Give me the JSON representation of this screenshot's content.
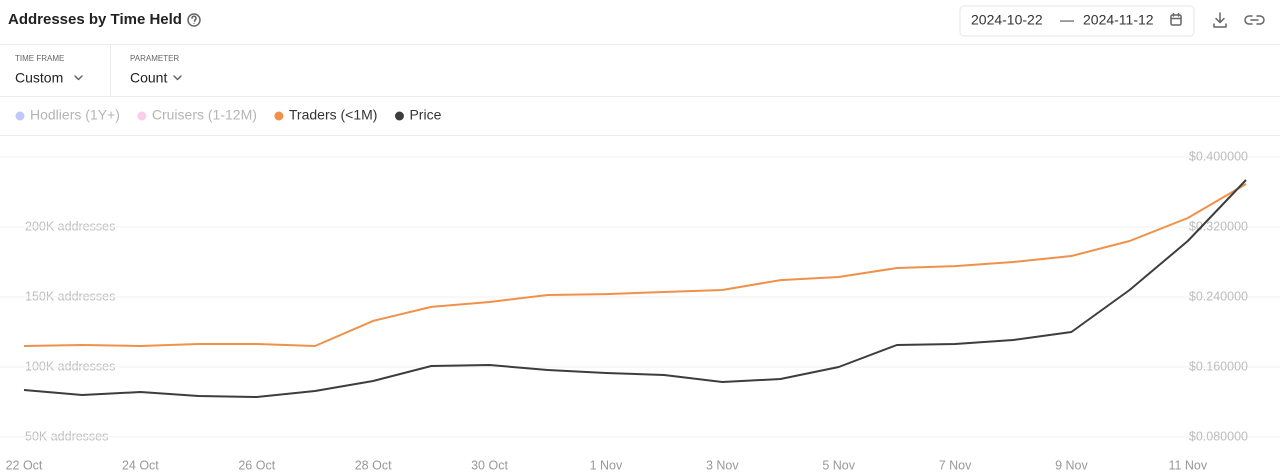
{
  "header": {
    "title": "Addresses by Time Held",
    "date_start": "2024-10-22",
    "date_separator": "—",
    "date_end": "2024-11-12"
  },
  "controls": [
    {
      "label": "TIME FRAME",
      "value": "Custom"
    },
    {
      "label": "PARAMETER",
      "value": "Count"
    }
  ],
  "chart_data": {
    "type": "line",
    "categories": [
      "22 Oct",
      null,
      "24 Oct",
      null,
      "26 Oct",
      null,
      "28 Oct",
      null,
      "30 Oct",
      null,
      "1 Nov",
      null,
      "3 Nov",
      null,
      "5 Nov",
      null,
      "7 Nov",
      null,
      "9 Nov",
      null,
      "11 Nov",
      null
    ],
    "hidden_series": [
      {
        "name": "Hodliers (1Y+)",
        "color": "#8c9af0"
      },
      {
        "name": "Cruisers (1-12M)",
        "color": "#f2a5d9"
      }
    ],
    "series": [
      {
        "name": "Traders (<1M)",
        "color": "#f0914a",
        "values": [
          115000,
          115700,
          115000,
          116400,
          116400,
          115000,
          132900,
          142900,
          146400,
          151400,
          152100,
          153600,
          155000,
          162100,
          164300,
          170700,
          172100,
          175000,
          179300,
          190000,
          206400,
          230700
        ]
      },
      {
        "name": "Price",
        "color": "#3d3d3d",
        "axis": "y2",
        "values": [
          0.1337,
          0.128,
          0.1314,
          0.1269,
          0.1257,
          0.1326,
          0.144,
          0.1611,
          0.1623,
          0.1566,
          0.1531,
          0.1509,
          0.1429,
          0.1463,
          0.16,
          0.1851,
          0.1863,
          0.1909,
          0.2,
          0.248,
          0.304,
          0.3737
        ]
      }
    ],
    "ylim": [
      40000,
      260000
    ],
    "yticks": [
      {
        "value": 50000,
        "label": "50K addresses"
      },
      {
        "value": 100000,
        "label": "100K addresses"
      },
      {
        "value": 150000,
        "label": "150K addresses"
      },
      {
        "value": 200000,
        "label": "200K addresses"
      }
    ],
    "y2lim": [
      0.064,
      0.416
    ],
    "y2ticks": [
      {
        "value": 0.08,
        "label": "$0.080000"
      },
      {
        "value": 0.16,
        "label": "$0.160000"
      },
      {
        "value": 0.24,
        "label": "$0.240000"
      },
      {
        "value": 0.32,
        "label": "$0.320000"
      },
      {
        "value": 0.4,
        "label": "$0.400000"
      }
    ],
    "grid": true
  }
}
